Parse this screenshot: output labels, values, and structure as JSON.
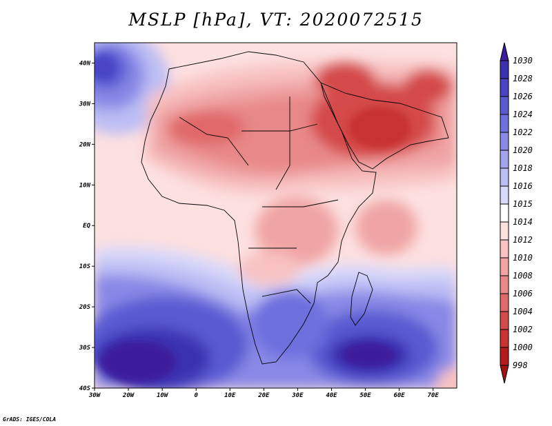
{
  "title": "MSLP [hPa], VT: 2020072515",
  "credit": "GrADS: IGES/COLA",
  "axes": {
    "x_ticks": [
      "30W",
      "20W",
      "10W",
      "0",
      "10E",
      "20E",
      "30E",
      "40E",
      "50E",
      "60E",
      "70E"
    ],
    "y_ticks": [
      "40N",
      "30N",
      "20N",
      "10N",
      "EQ",
      "10S",
      "20S",
      "30S",
      "40S"
    ],
    "lon_range": [
      -30,
      77
    ],
    "lat_range": [
      -40,
      45
    ]
  },
  "colorbar": {
    "levels": [
      "1030",
      "1028",
      "1026",
      "1024",
      "1022",
      "1020",
      "1018",
      "1016",
      "1015",
      "1014",
      "1012",
      "1010",
      "1008",
      "1006",
      "1004",
      "1002",
      "1000",
      "998"
    ],
    "colors": [
      "#3c1c9c",
      "#3a30b0",
      "#4a44c4",
      "#5a5ad2",
      "#6e70de",
      "#8888e6",
      "#a2a4ee",
      "#bcbef4",
      "#d8d8fa",
      "#ffffff",
      "#fde0e0",
      "#f8c2c2",
      "#f0a4a4",
      "#e88888",
      "#e06868",
      "#d44a4a",
      "#c83232",
      "#b41c1c",
      "#a01414"
    ]
  },
  "colors": {
    "high_pressure": "#3c1c9c",
    "low_pressure": "#b41c1c",
    "neutral": "#ffffff"
  }
}
